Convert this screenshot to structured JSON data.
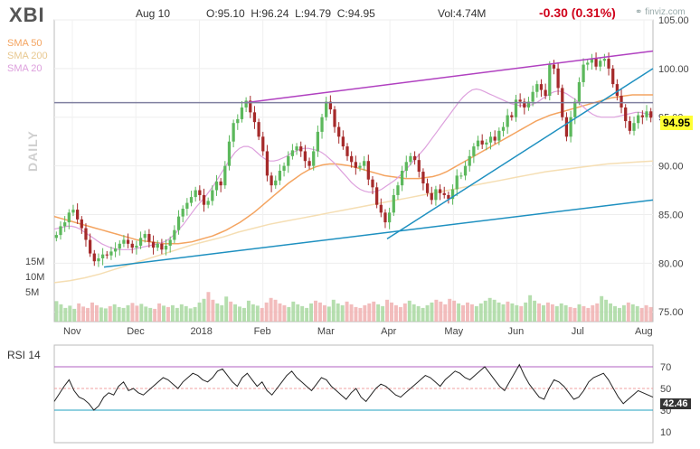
{
  "header": {
    "ticker": "XBI",
    "date": "Aug 10",
    "ohlc": "O:95.10  H:96.24  L:94.79  C:94.95",
    "volume": "Vol:4.74M",
    "change": "-0.30 (0.31%)",
    "source": "finviz.com"
  },
  "legend": {
    "sma50": "SMA 50",
    "sma200": "SMA 200",
    "sma20": "SMA 20"
  },
  "watermark": "DAILY",
  "last_price_label": "94.95",
  "rsi_label": "RSI 14",
  "rsi_value_label": "42.46",
  "colors": {
    "up": "#5cb85c",
    "down": "#a52a2a",
    "sma50": "#f4a460",
    "sma200": "#f5deb3",
    "sma20": "#dda0dd",
    "trend_purple": "#b040c0",
    "trend_blue": "#1e90c0",
    "resistance": "#8080a0",
    "rsi_line": "#222222",
    "vol_up": "#a8d8a0",
    "vol_down": "#f0b0b0"
  },
  "chart_data": {
    "type": "candlestick",
    "x_labels": [
      "Nov",
      "Dec",
      "2018",
      "Feb",
      "Mar",
      "Apr",
      "May",
      "Jun",
      "Jul",
      "Aug"
    ],
    "price_axis": {
      "ticks": [
        75.0,
        80.0,
        85.0,
        90.0,
        95.0,
        100.0,
        105.0
      ],
      "range": [
        74.0,
        105.0
      ]
    },
    "volume_axis": {
      "ticks": [
        "5M",
        "10M",
        "15M"
      ]
    },
    "rsi_axis": {
      "ticks": [
        10,
        30,
        50,
        70
      ],
      "range": [
        0,
        90
      ],
      "overbought": 70,
      "oversold": 30
    },
    "close_series": [
      82.9,
      83.8,
      84.2,
      85.2,
      85.5,
      84.5,
      83.6,
      82.4,
      81.0,
      80.2,
      80.5,
      80.9,
      80.8,
      81.2,
      81.5,
      82.0,
      82.4,
      82.0,
      81.6,
      81.8,
      82.6,
      83.0,
      82.2,
      81.6,
      82.0,
      81.4,
      81.8,
      82.4,
      83.4,
      84.8,
      85.6,
      86.2,
      86.8,
      87.5,
      87.0,
      86.0,
      86.4,
      87.5,
      88.4,
      88.0,
      90.0,
      92.5,
      94.4,
      94.8,
      96.0,
      96.7,
      95.5,
      94.5,
      93.0,
      91.5,
      89.0,
      88.0,
      88.5,
      89.5,
      90.0,
      91.0,
      91.6,
      92.0,
      91.5,
      90.5,
      90.0,
      91.5,
      93.5,
      95.0,
      96.6,
      95.8,
      94.0,
      93.0,
      92.0,
      91.0,
      90.4,
      89.8,
      90.0,
      90.5,
      88.6,
      87.8,
      86.0,
      85.2,
      84.2,
      85.2,
      87.0,
      88.0,
      89.5,
      90.4,
      91.0,
      90.6,
      89.4,
      88.2,
      87.2,
      86.5,
      87.6,
      87.2,
      87.0,
      86.6,
      87.6,
      89.0,
      89.0,
      90.0,
      91.0,
      92.0,
      92.6,
      92.2,
      92.4,
      93.0,
      92.6,
      93.6,
      94.0,
      95.2,
      95.0,
      96.8,
      96.6,
      96.0,
      96.6,
      97.6,
      98.4,
      97.8,
      97.2,
      100.4,
      100.0,
      98.0,
      95.0,
      93.0,
      95.0,
      96.6,
      98.6,
      100.4,
      100.6,
      101.0,
      100.2,
      100.8,
      101.0,
      100.0,
      98.4,
      97.2,
      96.0,
      94.6,
      93.6,
      94.4,
      95.2,
      95.0,
      95.6,
      94.95
    ],
    "sma20": [
      83.5,
      83.6,
      83.7,
      83.8,
      83.8,
      83.7,
      83.5,
      83.2,
      82.9,
      82.6,
      82.3,
      82.0,
      81.8,
      81.6,
      81.5,
      81.4,
      81.4,
      81.4,
      81.4,
      81.5,
      81.6,
      81.7,
      81.8,
      81.9,
      82.0,
      82.1,
      82.3,
      82.6,
      83.0,
      83.5,
      84.0,
      84.6,
      85.2,
      85.8,
      86.3,
      86.8,
      87.4,
      88.0,
      88.7,
      89.4,
      90.1,
      90.8,
      91.4,
      91.8,
      92.0,
      92.0,
      91.8,
      91.4,
      91.0,
      90.7,
      90.5,
      90.5,
      90.6,
      90.8,
      91.0,
      91.3,
      91.5,
      91.7,
      91.8,
      91.8,
      91.7,
      91.6,
      91.4,
      91.1,
      90.7,
      90.3,
      89.8,
      89.3,
      88.8,
      88.3,
      87.9,
      87.6,
      87.4,
      87.3,
      87.3,
      87.4,
      87.6,
      87.9,
      88.2,
      88.5,
      88.9,
      89.3,
      89.8,
      90.3,
      90.8,
      91.3,
      91.8,
      92.4,
      93.0,
      93.6,
      94.2,
      94.8,
      95.4,
      96.0,
      96.6,
      97.1,
      97.5,
      97.8,
      97.9,
      97.8,
      97.6,
      97.4,
      97.2,
      97.0,
      96.8,
      96.6,
      96.4,
      96.3,
      96.2,
      96.2,
      96.2,
      96.3,
      96.5,
      96.8,
      97.1,
      97.4,
      97.6,
      97.7,
      97.6,
      97.4,
      97.1,
      96.8,
      96.4,
      96.0,
      95.6,
      95.3,
      95.1,
      95.0,
      95.0,
      95.0,
      95.0,
      95.1,
      95.2,
      95.3,
      95.4,
      95.5,
      95.5,
      95.4,
      95.3,
      95.2
    ],
    "sma50": [
      84.8,
      84.6,
      84.4,
      84.2,
      84.0,
      83.8,
      83.6,
      83.4,
      83.2,
      83.0,
      82.8,
      82.6,
      82.4,
      82.3,
      82.2,
      82.1,
      82.0,
      82.0,
      82.0,
      82.1,
      82.2,
      82.4,
      82.6,
      82.8,
      83.1,
      83.4,
      83.8,
      84.2,
      84.7,
      85.2,
      85.8,
      86.4,
      87.0,
      87.6,
      88.2,
      88.7,
      89.2,
      89.6,
      89.9,
      90.1,
      90.2,
      90.2,
      90.1,
      90.0,
      89.8,
      89.6,
      89.4,
      89.2,
      89.0,
      88.9,
      88.8,
      88.7,
      88.7,
      88.7,
      88.8,
      88.9,
      89.1,
      89.4,
      89.8,
      90.2,
      90.6,
      91.0,
      91.4,
      91.8,
      92.2,
      92.6,
      93.0,
      93.4,
      93.8,
      94.2,
      94.6,
      94.9,
      95.2,
      95.4,
      95.6,
      95.8,
      96.0,
      96.2,
      96.4,
      96.6,
      96.8,
      97.0,
      97.1,
      97.2,
      97.3,
      97.3,
      97.3,
      97.3
    ],
    "sma200": [
      78.0,
      78.2,
      78.5,
      78.9,
      79.4,
      79.9,
      80.4,
      80.9,
      81.4,
      81.9,
      82.3,
      82.7,
      83.2,
      83.6,
      84.0,
      84.3,
      84.6,
      84.9,
      85.2,
      85.5,
      85.8,
      86.1,
      86.4,
      86.7,
      87.0,
      87.3,
      87.6,
      87.9,
      88.2,
      88.5,
      88.8,
      89.1,
      89.4,
      89.6,
      89.8,
      90.0,
      90.2,
      90.3,
      90.4,
      90.5
    ],
    "rsi": [
      38,
      45,
      52,
      58,
      48,
      42,
      40,
      36,
      30,
      34,
      42,
      46,
      44,
      52,
      56,
      48,
      50,
      46,
      44,
      48,
      52,
      56,
      60,
      58,
      54,
      50,
      56,
      60,
      64,
      62,
      58,
      56,
      60,
      66,
      68,
      62,
      56,
      52,
      60,
      64,
      58,
      52,
      56,
      48,
      44,
      50,
      56,
      62,
      66,
      60,
      56,
      52,
      48,
      54,
      60,
      58,
      52,
      48,
      44,
      40,
      46,
      50,
      42,
      38,
      44,
      50,
      54,
      52,
      48,
      44,
      42,
      46,
      50,
      54,
      58,
      62,
      60,
      56,
      52,
      58,
      62,
      66,
      64,
      60,
      58,
      62,
      66,
      70,
      64,
      58,
      52,
      48,
      56,
      64,
      72,
      62,
      54,
      48,
      42,
      40,
      50,
      58,
      56,
      52,
      46,
      40,
      42,
      48,
      56,
      60,
      62,
      64,
      58,
      50,
      42,
      36,
      40,
      44,
      48,
      46,
      44,
      42
    ],
    "volume": [
      0.45,
      0.38,
      0.3,
      0.35,
      0.28,
      0.4,
      0.33,
      0.3,
      0.42,
      0.36,
      0.31,
      0.29,
      0.34,
      0.38,
      0.32,
      0.3,
      0.36,
      0.41,
      0.35,
      0.39,
      0.33,
      0.3,
      0.28,
      0.4,
      0.35,
      0.32,
      0.36,
      0.3,
      0.38,
      0.34,
      0.29,
      0.32,
      0.42,
      0.5,
      0.65,
      0.48,
      0.4,
      0.36,
      0.55,
      0.44,
      0.38,
      0.33,
      0.3,
      0.46,
      0.38,
      0.35,
      0.3,
      0.42,
      0.52,
      0.48,
      0.4,
      0.36,
      0.32,
      0.44,
      0.38,
      0.34,
      0.3,
      0.4,
      0.46,
      0.42,
      0.36,
      0.33,
      0.48,
      0.4,
      0.36,
      0.44,
      0.38,
      0.32,
      0.3,
      0.36,
      0.4,
      0.44,
      0.38,
      0.34,
      0.48,
      0.42,
      0.36,
      0.32,
      0.4,
      0.46,
      0.38,
      0.34,
      0.3,
      0.36,
      0.42,
      0.48,
      0.44,
      0.38,
      0.5,
      0.46,
      0.4,
      0.36,
      0.42,
      0.38,
      0.34,
      0.4,
      0.46,
      0.52,
      0.48,
      0.42,
      0.38,
      0.44,
      0.4,
      0.36,
      0.34,
      0.42,
      0.58,
      0.46,
      0.4,
      0.36,
      0.42,
      0.38,
      0.34,
      0.4,
      0.36,
      0.32,
      0.3,
      0.38,
      0.34,
      0.3,
      0.36,
      0.4,
      0.56,
      0.48,
      0.4,
      0.34,
      0.3,
      0.36,
      0.42,
      0.38,
      0.34,
      0.3,
      0.36,
      0.32
    ]
  }
}
